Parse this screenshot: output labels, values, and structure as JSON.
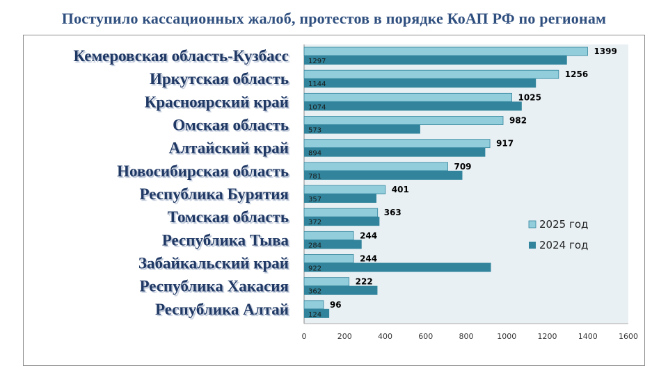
{
  "chart_data": {
    "type": "bar",
    "orientation": "horizontal",
    "title": "Поступило кассационных жалоб, протестов в порядке КоАП РФ по регионам",
    "categories": [
      "Кемеровская область-Кузбасс",
      "Иркутская область",
      "Красноярский край",
      "Омская область",
      "Алтайский край",
      "Новосибирская область",
      "Республика Бурятия",
      "Томская область",
      "Республика Тыва",
      "Забайкальский край",
      "Республика Хакасия",
      "Республика Алтай"
    ],
    "series": [
      {
        "name": "2025 год",
        "color": "#92cddc",
        "values": [
          1399,
          1256,
          1025,
          982,
          917,
          709,
          401,
          363,
          244,
          244,
          222,
          96
        ]
      },
      {
        "name": "2024 год",
        "color": "#31849b",
        "values": [
          1297,
          1144,
          1074,
          573,
          894,
          781,
          357,
          372,
          284,
          922,
          362,
          124
        ]
      }
    ],
    "xlim": [
      0,
      1600
    ],
    "xticks": [
      "0",
      "200",
      "400",
      "600",
      "800",
      "1000",
      "1200",
      "1400",
      "1600"
    ],
    "legend": "right",
    "grid": false,
    "plot_bg": "#e8f0f4"
  }
}
